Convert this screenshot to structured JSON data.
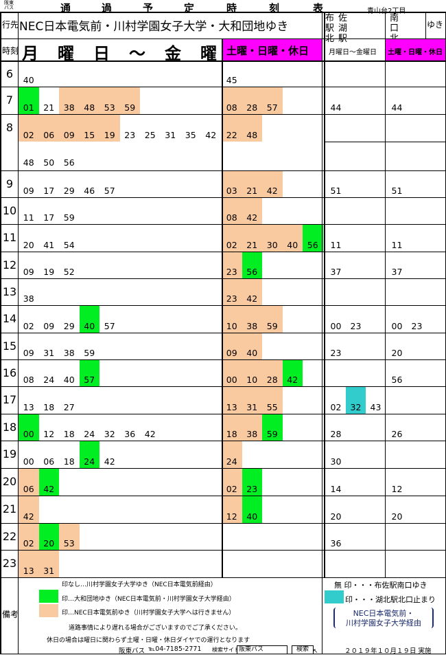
{
  "header": {
    "company": "阪東バス",
    "title": [
      "通",
      "過",
      "予",
      "定",
      "時",
      "刻",
      "表"
    ],
    "stop": "青山台2丁目"
  },
  "labels": {
    "dest": "行先",
    "time": "時刻",
    "remarks": "備考"
  },
  "routes": {
    "main_dest": "NEC日本電気前・川村学園女子大学・大和団地ゆき",
    "dest_a": "布佐駅湖北駅",
    "dest_b_1": "南口",
    "dest_b_2": "北口",
    "dest_b_suffix": "ゆき",
    "weekday_head": "月　曜　日　～　金　曜　日",
    "holiday_head": "土曜・日曜・休日",
    "sub_weekday": "月曜日～金曜日",
    "sub_holiday": "土曜・日曜・休日"
  },
  "colors": {
    "orange": "#f9c9a0",
    "green": "#00ee22",
    "cyan": "#33cccc",
    "magenta": "#ff00ff"
  },
  "hours": [
    {
      "h": "6",
      "wd": [
        [
          "40",
          ""
        ]
      ],
      "ho": [
        [
          "45",
          ""
        ]
      ],
      "a_wd": [],
      "a_ho": []
    },
    {
      "h": "7",
      "wd": [
        [
          "01",
          "g"
        ],
        [
          "21",
          ""
        ],
        [
          "38",
          "o"
        ],
        [
          "48",
          "o"
        ],
        [
          "53",
          "o"
        ],
        [
          "59",
          "o"
        ]
      ],
      "ho": [
        [
          "08",
          "o"
        ],
        [
          "28",
          "o"
        ],
        [
          "57",
          "o"
        ]
      ],
      "a_wd": [
        [
          "44",
          ""
        ]
      ],
      "a_ho": [
        [
          "44",
          ""
        ]
      ]
    },
    {
      "h": "8",
      "wd": [
        [
          "02",
          "o"
        ],
        [
          "06",
          "o"
        ],
        [
          "09",
          "o"
        ],
        [
          "15",
          "o"
        ],
        [
          "19",
          "o"
        ],
        [
          "23",
          ""
        ],
        [
          "25",
          ""
        ],
        [
          "31",
          ""
        ],
        [
          "35",
          ""
        ],
        [
          "42",
          ""
        ]
      ],
      "wd2": [
        [
          "48",
          ""
        ],
        [
          "50",
          ""
        ],
        [
          "56",
          ""
        ]
      ],
      "ho": [
        [
          "22",
          "o"
        ],
        [
          "48",
          "o"
        ]
      ],
      "a_wd": [],
      "a_ho": []
    },
    {
      "h": "9",
      "wd": [
        [
          "09",
          ""
        ],
        [
          "17",
          ""
        ],
        [
          "29",
          ""
        ],
        [
          "46",
          ""
        ],
        [
          "57",
          ""
        ]
      ],
      "ho": [
        [
          "03",
          "o"
        ],
        [
          "21",
          "o"
        ],
        [
          "42",
          "o"
        ]
      ],
      "a_wd": [
        [
          "51",
          ""
        ]
      ],
      "a_ho": [
        [
          "51",
          ""
        ]
      ]
    },
    {
      "h": "10",
      "wd": [
        [
          "11",
          ""
        ],
        [
          "17",
          ""
        ],
        [
          "59",
          ""
        ]
      ],
      "ho": [
        [
          "08",
          "o"
        ],
        [
          "42",
          "o"
        ]
      ],
      "a_wd": [],
      "a_ho": []
    },
    {
      "h": "11",
      "wd": [
        [
          "20",
          ""
        ],
        [
          "41",
          ""
        ],
        [
          "54",
          ""
        ]
      ],
      "ho": [
        [
          "02",
          "o"
        ],
        [
          "21",
          "o"
        ],
        [
          "30",
          "o"
        ],
        [
          "40",
          "o"
        ],
        [
          "56",
          "g"
        ]
      ],
      "a_wd": [
        [
          "11",
          ""
        ]
      ],
      "a_ho": [
        [
          "11",
          ""
        ]
      ]
    },
    {
      "h": "12",
      "wd": [
        [
          "09",
          ""
        ],
        [
          "19",
          ""
        ],
        [
          "52",
          ""
        ]
      ],
      "ho": [
        [
          "23",
          "o"
        ],
        [
          "56",
          "g"
        ]
      ],
      "a_wd": [
        [
          "37",
          ""
        ]
      ],
      "a_ho": [
        [
          "37",
          ""
        ]
      ]
    },
    {
      "h": "13",
      "wd": [
        [
          "38",
          ""
        ]
      ],
      "ho": [
        [
          "23",
          "o"
        ],
        [
          "42",
          "o"
        ]
      ],
      "a_wd": [],
      "a_ho": []
    },
    {
      "h": "14",
      "wd": [
        [
          "02",
          ""
        ],
        [
          "09",
          ""
        ],
        [
          "29",
          ""
        ],
        [
          "40",
          "g"
        ],
        [
          "57",
          ""
        ]
      ],
      "ho": [
        [
          "10",
          "o"
        ],
        [
          "38",
          "o"
        ],
        [
          "59",
          "o"
        ]
      ],
      "a_wd": [
        [
          "00",
          ""
        ],
        [
          "23",
          ""
        ]
      ],
      "a_ho": [
        [
          "00",
          ""
        ],
        [
          "23",
          ""
        ]
      ]
    },
    {
      "h": "15",
      "wd": [
        [
          "09",
          ""
        ],
        [
          "31",
          ""
        ],
        [
          "38",
          ""
        ],
        [
          "59",
          ""
        ]
      ],
      "ho": [
        [
          "09",
          "o"
        ],
        [
          "40",
          "o"
        ]
      ],
      "a_wd": [
        [
          "23",
          ""
        ]
      ],
      "a_ho": [
        [
          "20",
          ""
        ]
      ]
    },
    {
      "h": "16",
      "wd": [
        [
          "08",
          ""
        ],
        [
          "24",
          ""
        ],
        [
          "40",
          ""
        ],
        [
          "57",
          "g"
        ]
      ],
      "ho": [
        [
          "00",
          "o"
        ],
        [
          "10",
          "o"
        ],
        [
          "28",
          "o"
        ],
        [
          "42",
          "g"
        ]
      ],
      "a_wd": [],
      "a_ho": [
        [
          "56",
          ""
        ]
      ]
    },
    {
      "h": "17",
      "wd": [
        [
          "13",
          ""
        ],
        [
          "18",
          ""
        ],
        [
          "27",
          ""
        ]
      ],
      "ho": [
        [
          "13",
          "o"
        ],
        [
          "31",
          "o"
        ],
        [
          "55",
          "o"
        ]
      ],
      "a_wd": [
        [
          "02",
          ""
        ],
        [
          "32",
          "c"
        ],
        [
          "43",
          ""
        ]
      ],
      "a_ho": []
    },
    {
      "h": "18",
      "wd": [
        [
          "00",
          "g"
        ],
        [
          "12",
          ""
        ],
        [
          "18",
          ""
        ],
        [
          "24",
          ""
        ],
        [
          "32",
          ""
        ],
        [
          "36",
          ""
        ],
        [
          "42",
          ""
        ]
      ],
      "ho": [
        [
          "18",
          "o"
        ],
        [
          "38",
          "o"
        ],
        [
          "59",
          "g"
        ]
      ],
      "a_wd": [
        [
          "28",
          ""
        ]
      ],
      "a_ho": [
        [
          "26",
          ""
        ]
      ]
    },
    {
      "h": "19",
      "wd": [
        [
          "00",
          ""
        ],
        [
          "06",
          ""
        ],
        [
          "18",
          ""
        ],
        [
          "24",
          "g"
        ],
        [
          "42",
          ""
        ]
      ],
      "ho": [
        [
          "24",
          "o"
        ]
      ],
      "a_wd": [
        [
          "30",
          ""
        ]
      ],
      "a_ho": []
    },
    {
      "h": "20",
      "wd": [
        [
          "06",
          "o"
        ],
        [
          "42",
          "g"
        ]
      ],
      "ho": [
        [
          "02",
          "o"
        ],
        [
          "23",
          "g"
        ]
      ],
      "a_wd": [
        [
          "14",
          ""
        ]
      ],
      "a_ho": [
        [
          "12",
          ""
        ]
      ]
    },
    {
      "h": "21",
      "wd": [
        [
          "42",
          "o"
        ]
      ],
      "ho": [
        [
          "12",
          "o"
        ],
        [
          "40",
          "g"
        ]
      ],
      "a_wd": [
        [
          "20",
          ""
        ]
      ],
      "a_ho": [
        [
          "20",
          ""
        ]
      ]
    },
    {
      "h": "22",
      "wd": [
        [
          "02",
          "o"
        ],
        [
          "20",
          "g"
        ],
        [
          "53",
          "o"
        ]
      ],
      "ho": [],
      "a_wd": [
        [
          "36",
          ""
        ]
      ],
      "a_ho": []
    },
    {
      "h": "23",
      "wd": [
        [
          "13",
          "o"
        ],
        [
          "31",
          "o"
        ]
      ],
      "ho": [],
      "a_wd": [],
      "a_ho": []
    }
  ],
  "legend": {
    "none": "印なし…川村学園女子大学ゆき（NEC日本電気前経由）",
    "green": "印…大和団地ゆき（NEC日本電気前・川村学園女子大学経由）",
    "orange": "印…NEC日本電気前ゆき（川村学園女子大学へは行きません）",
    "note1": "道路事情により遅れる場合がございますのでご了承ください。",
    "note2": "休日の場合は曜日に関わらず土曜・日曜・休日ダイヤでの運行となります",
    "right_none": "無 印・・・布佐駅南口ゆき",
    "right_cyan": "印・・・湖北駅北口止まり",
    "right_via_1": "NEC日本電気前・",
    "right_via_2": "川村学園女子大学経由"
  },
  "footer": {
    "company": "阪東バス",
    "tel": "℡04-7185-2771",
    "search_label": "検索サイト",
    "search_value": "阪東バス",
    "search_button": "検索",
    "date": "２０１９年１０月１９日 実施"
  }
}
